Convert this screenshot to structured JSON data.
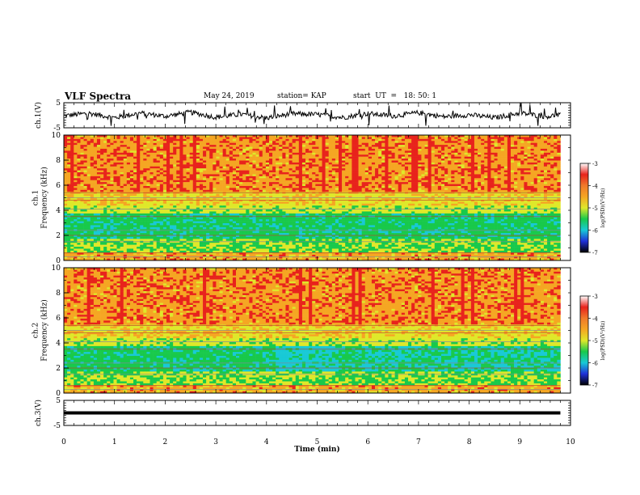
{
  "header": {
    "title": "VLF Spectra",
    "date": "May 24, 2019",
    "station": "station= KAP",
    "start": "start  UT  =   18: 50: 1"
  },
  "colors": {
    "high": "#e8231c",
    "mid_high": "#f5a623",
    "mid": "#dfe82a",
    "mid_low": "#18c94b",
    "low": "#18c9d6",
    "lowest": "#1f2fd8"
  },
  "chart_data": [
    {
      "type": "line",
      "panel": "ch1-waveform",
      "ylabel": "ch.1(V)",
      "ylim": [
        -5,
        5
      ],
      "yticks": [
        "-5",
        "5"
      ],
      "xlim": [
        0,
        10
      ],
      "series": [
        {
          "x": [
            0,
            0.5,
            1,
            1.5,
            2,
            2.5,
            3,
            3.5,
            4,
            4.5,
            5,
            5.5,
            6,
            6.5,
            7,
            7.5,
            8,
            8.5,
            9,
            9.5,
            9.8
          ],
          "values": [
            -0.2,
            0.8,
            -1.0,
            0.9,
            -0.4,
            1.2,
            -0.8,
            0.4,
            -1.1,
            0.6,
            0.3,
            -0.9,
            0.7,
            -0.3,
            1.0,
            -0.6,
            0.2,
            -1.0,
            0.9,
            -0.5,
            0.1
          ]
        }
      ]
    },
    {
      "type": "heatmap",
      "panel": "ch1-spectrogram",
      "ylabel": "ch.1\nFrequency  (kHz)",
      "ylim": [
        0,
        10
      ],
      "yticks": [
        "0",
        "2",
        "4",
        "6",
        "8",
        "10"
      ],
      "xlim": [
        0,
        10
      ],
      "colorbar": {
        "label": "log(PSD)(V²/Hz)",
        "ticks": [
          "-3",
          "-4",
          "-5",
          "-6",
          "-7"
        ],
        "range": [
          -7,
          -3
        ]
      }
    },
    {
      "type": "heatmap",
      "panel": "ch2-spectrogram",
      "ylabel": "ch.2\nFrequency  (kHz)",
      "ylim": [
        0,
        10
      ],
      "yticks": [
        "0",
        "2",
        "4",
        "6",
        "8",
        "10"
      ],
      "xlim": [
        0,
        10
      ],
      "colorbar": {
        "label": "log(PSD)(V²/Hz)",
        "ticks": [
          "-3",
          "-4",
          "-5",
          "-6",
          "-7"
        ],
        "range": [
          -7,
          -3
        ]
      }
    },
    {
      "type": "line",
      "panel": "ch3-waveform",
      "ylabel": "ch.3(V)",
      "ylim": [
        -5,
        5
      ],
      "yticks": [
        "-5",
        "5"
      ],
      "xlim": [
        0,
        10
      ],
      "series": [
        {
          "x": [
            0,
            9.8
          ],
          "values": [
            0,
            0
          ]
        }
      ]
    }
  ],
  "xaxis": {
    "label": "Time  (min)",
    "ticks": [
      "0",
      "1",
      "2",
      "3",
      "4",
      "5",
      "6",
      "7",
      "8",
      "9",
      "10"
    ]
  }
}
